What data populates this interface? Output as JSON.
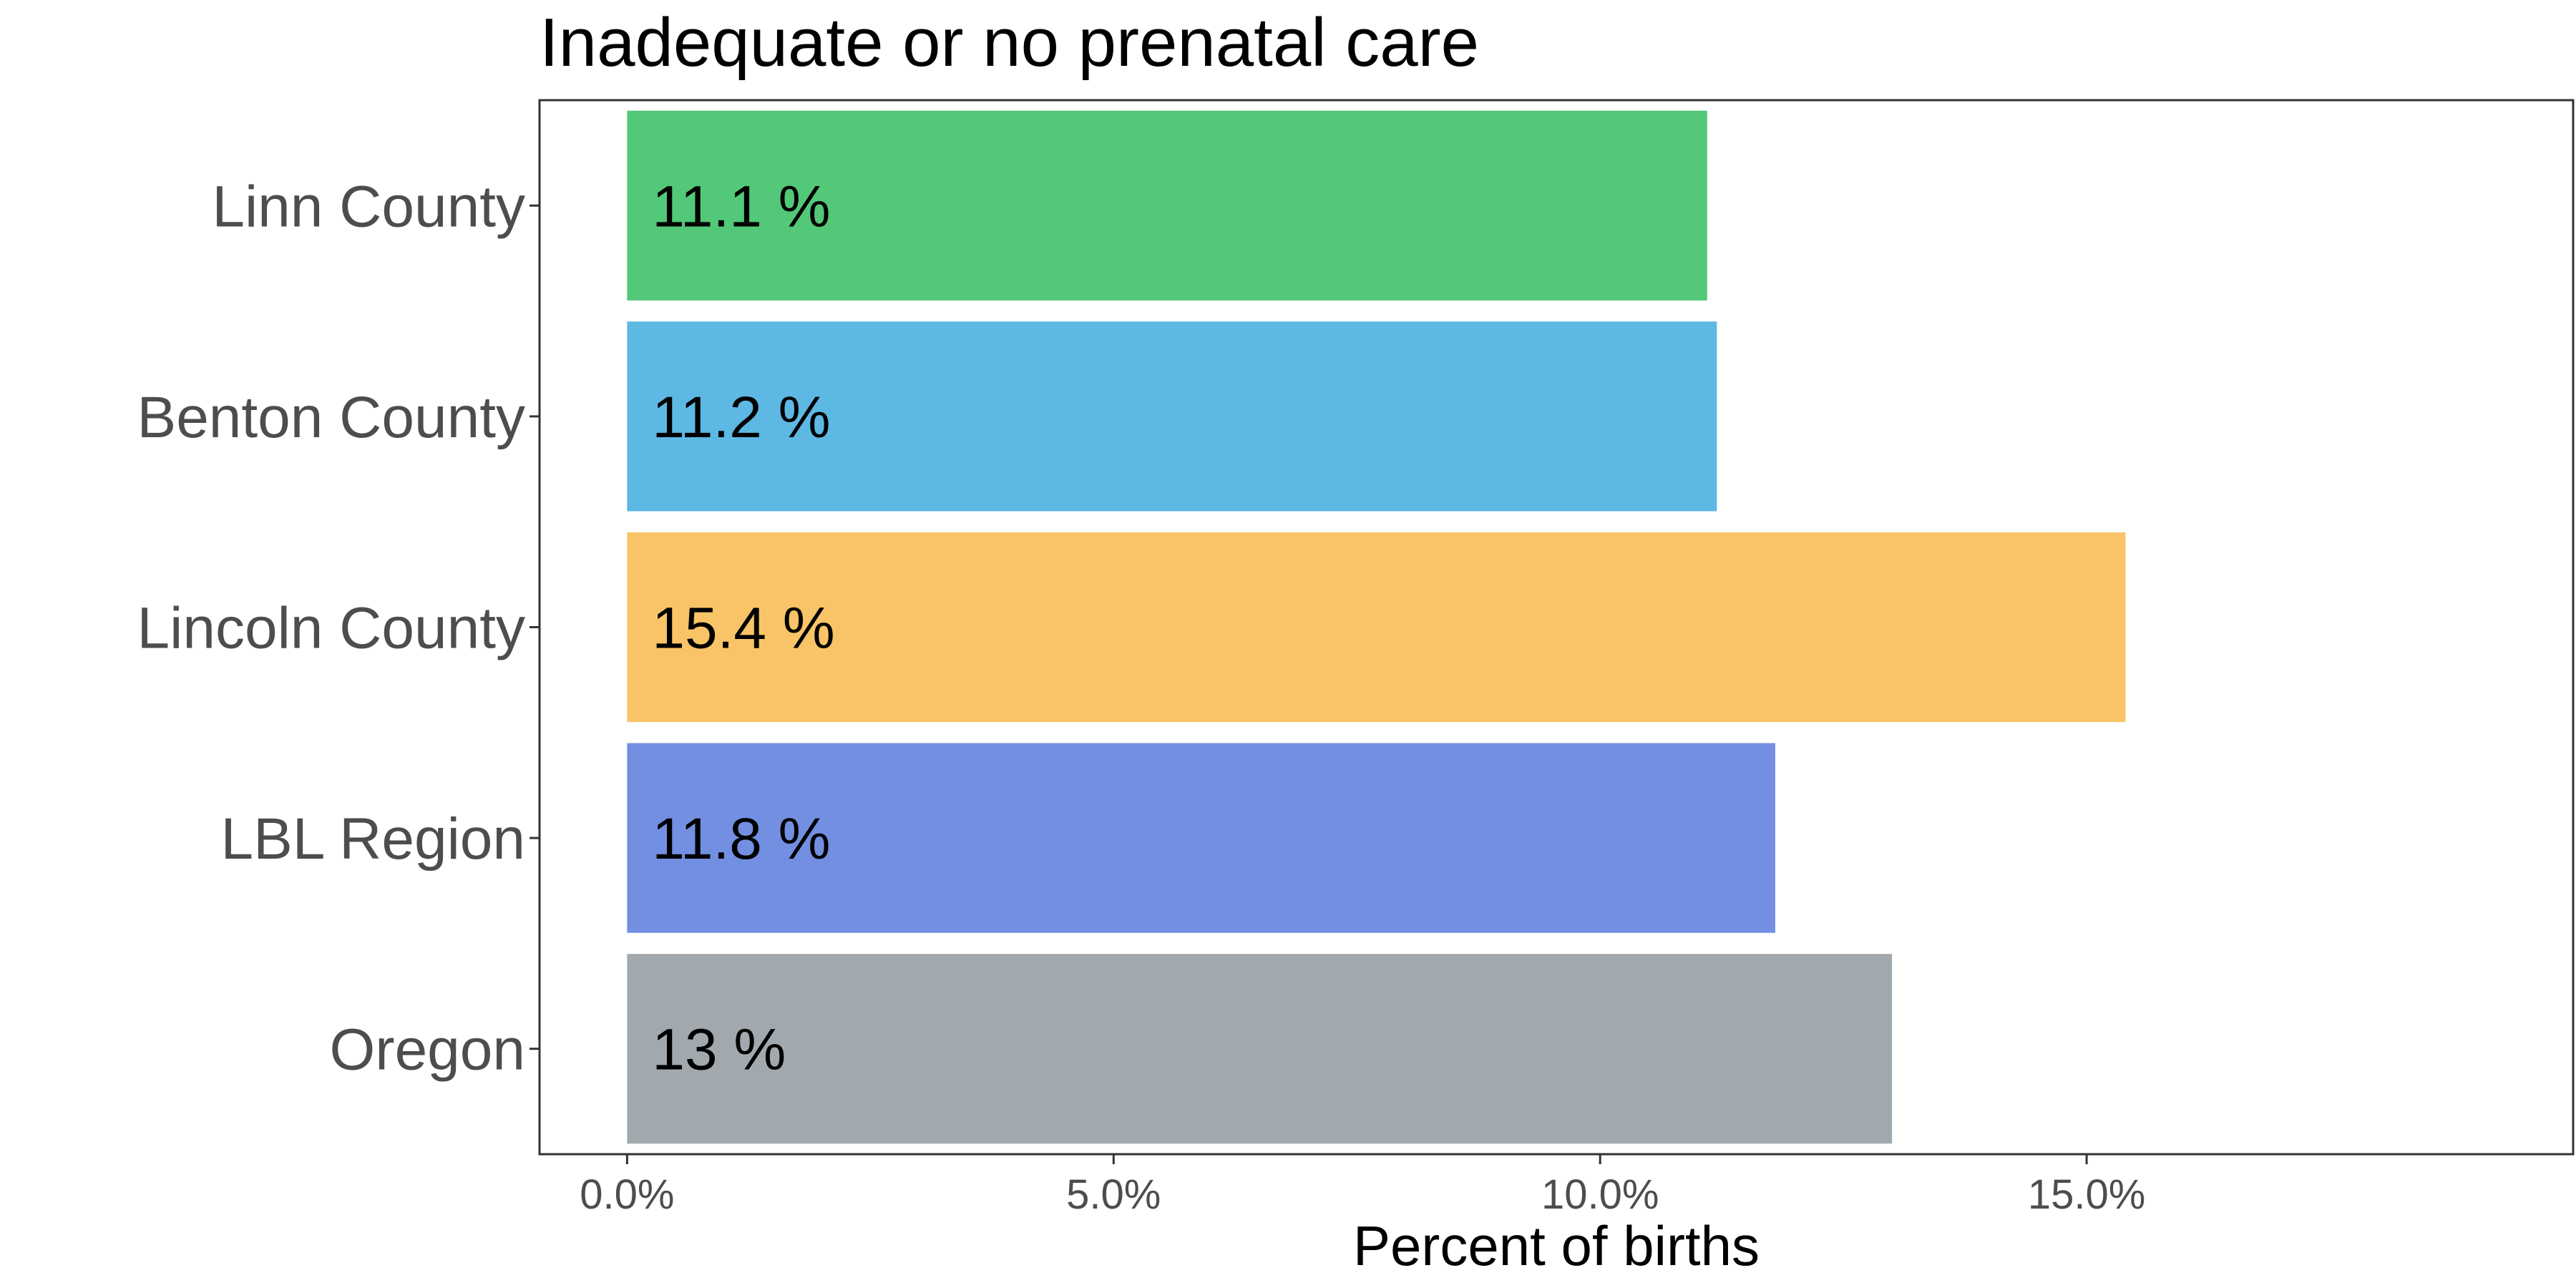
{
  "chart_data": {
    "type": "bar",
    "orientation": "horizontal",
    "title": "Inadequate or no prenatal care",
    "xlabel": "Percent of births",
    "ylabel": "",
    "categories": [
      "Linn County",
      "Benton County",
      "Lincoln County",
      "LBL Region",
      "Oregon"
    ],
    "values": [
      11.1,
      11.2,
      15.4,
      11.8,
      13.0
    ],
    "data_labels": [
      "11.1 %",
      "11.2 %",
      "15.4 %",
      "11.8 %",
      "13 %"
    ],
    "colors": [
      "#52c878",
      "#5db8e4",
      "#f8c467",
      "#728fe1",
      "#a1a9ae"
    ],
    "xlim": [
      -0.9,
      20
    ],
    "x_ticks": [
      0,
      5,
      10,
      15
    ],
    "x_tick_labels": [
      "0.0%",
      "5.0%",
      "10.0%",
      "15.0%"
    ],
    "grid": false,
    "legend": "none"
  }
}
